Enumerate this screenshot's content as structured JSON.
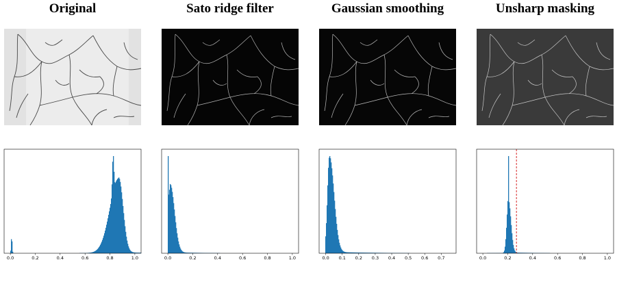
{
  "panels": [
    {
      "title": "Original",
      "image_style": "light",
      "bg": "#e2e2e2",
      "line": "#2a2a2a"
    },
    {
      "title": "Sato ridge filter",
      "image_style": "dark",
      "bg": "#050505",
      "line": "#c8c8c8"
    },
    {
      "title": "Gaussian smoothing",
      "image_style": "dark",
      "bg": "#060606",
      "line": "#d0d0d0"
    },
    {
      "title": "Unsharp masking",
      "image_style": "gray",
      "bg": "#3a3a3a",
      "line": "#d8d8d8"
    }
  ],
  "colors": {
    "bar": "#1f77b4",
    "threshold": "#d62728"
  },
  "chart_data": [
    {
      "type": "bar",
      "title": "",
      "xlabel": "",
      "ylabel": "",
      "xlim": [
        -0.05,
        1.05
      ],
      "xticks": [
        "0.0",
        "0.2",
        "0.4",
        "0.6",
        "0.8",
        "1.0"
      ],
      "tick_values": [
        0.0,
        0.2,
        0.4,
        0.6,
        0.8,
        1.0
      ],
      "distribution": {
        "peak": 0.87,
        "spread_left": 0.07,
        "spread_right": 0.035,
        "extra": [
          [
            0.01,
            0.22,
            0.004
          ],
          [
            0.825,
            0.5,
            0.006
          ]
        ]
      }
    },
    {
      "type": "bar",
      "title": "",
      "xlabel": "",
      "ylabel": "",
      "xlim": [
        -0.05,
        1.05
      ],
      "xticks": [
        "0.0",
        "0.2",
        "0.4",
        "0.6",
        "0.8",
        "1.0"
      ],
      "tick_values": [
        0.0,
        0.2,
        0.4,
        0.6,
        0.8,
        1.0
      ],
      "distribution": {
        "peak": 0.018,
        "spread_left": 0.012,
        "spread_right": 0.035,
        "extra": [
          [
            0.002,
            1.0,
            0.003
          ]
        ]
      }
    },
    {
      "type": "bar",
      "title": "",
      "xlabel": "",
      "ylabel": "",
      "xlim": [
        -0.04,
        0.79
      ],
      "xticks": [
        "0.0",
        "0.1",
        "0.2",
        "0.3",
        "0.4",
        "0.5",
        "0.6",
        "0.7"
      ],
      "tick_values": [
        0.0,
        0.1,
        0.2,
        0.3,
        0.4,
        0.5,
        0.6,
        0.7
      ],
      "distribution": {
        "peak": 0.022,
        "spread_left": 0.012,
        "spread_right": 0.028,
        "extra": []
      }
    },
    {
      "type": "bar",
      "title": "",
      "xlabel": "",
      "ylabel": "",
      "xlim": [
        -0.05,
        1.05
      ],
      "xticks": [
        "0.0",
        "0.2",
        "0.4",
        "0.6",
        "0.8",
        "1.0"
      ],
      "tick_values": [
        0.0,
        0.2,
        0.4,
        0.6,
        0.8,
        1.0
      ],
      "distribution": {
        "peak": 0.205,
        "spread_left": 0.013,
        "spread_right": 0.02,
        "extra": [
          [
            0.205,
            0.9,
            0.002
          ]
        ]
      },
      "threshold": 0.27
    }
  ]
}
